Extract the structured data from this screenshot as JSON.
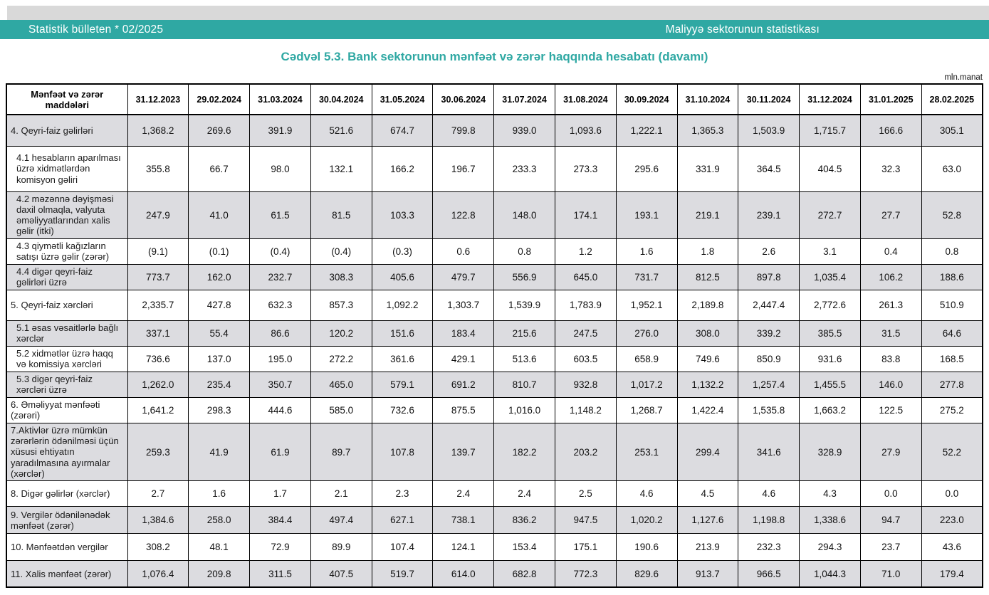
{
  "page": {
    "header_bar": {
      "left_text": "Statistik bülleten * 02/2025",
      "right_text": "Maliyyə sektorunun statistikası"
    },
    "title": "Cədvəl 5.3. Bank sektorunun mənfəət və zərər haqqında hesabatı (davamı)",
    "unit_label": "mln.manat"
  },
  "table": {
    "row_header_label": "Mənfəət və zərər maddələri",
    "date_columns": [
      "31.12.2023",
      "29.02.2024",
      "31.03.2024",
      "30.04.2024",
      "31.05.2024",
      "30.06.2024",
      "31.07.2024",
      "31.08.2024",
      "30.09.2024",
      "31.10.2024",
      "30.11.2024",
      "31.12.2024",
      "31.01.2025",
      "28.02.2025"
    ],
    "rows": [
      {
        "label": "4. Qeyri-faiz gəlirləri",
        "indent": false,
        "values": [
          "1,368.2",
          "269.6",
          "391.9",
          "521.6",
          "674.7",
          "799.8",
          "939.0",
          "1,093.6",
          "1,222.1",
          "1,365.3",
          "1,503.9",
          "1,715.7",
          "166.6",
          "305.1"
        ]
      },
      {
        "label": "4.1 hesabların aparılması üzrə xidmətlərdən komisyon gəliri",
        "indent": true,
        "values": [
          "355.8",
          "66.7",
          "98.0",
          "132.1",
          "166.2",
          "196.7",
          "233.3",
          "273.3",
          "295.6",
          "331.9",
          "364.5",
          "404.5",
          "32.3",
          "63.0"
        ]
      },
      {
        "label": "4.2 məzənnə dəyişməsi daxil olmaqla, valyuta əməliyyatlarından xalis gəlir (itki)",
        "indent": true,
        "values": [
          "247.9",
          "41.0",
          "61.5",
          "81.5",
          "103.3",
          "122.8",
          "148.0",
          "174.1",
          "193.1",
          "219.1",
          "239.1",
          "272.7",
          "27.7",
          "52.8"
        ]
      },
      {
        "label": "4.3 qiymətli kağızların satışı üzrə gəlir (zərər)",
        "indent": true,
        "values": [
          "(9.1)",
          "(0.1)",
          "(0.4)",
          "(0.4)",
          "(0.3)",
          "0.6",
          "0.8",
          "1.2",
          "1.6",
          "1.8",
          "2.6",
          "3.1",
          "0.4",
          "0.8"
        ]
      },
      {
        "label": "4.4 digər qeyri-faiz gəlirləri üzrə",
        "indent": true,
        "values": [
          "773.7",
          "162.0",
          "232.7",
          "308.3",
          "405.6",
          "479.7",
          "556.9",
          "645.0",
          "731.7",
          "812.5",
          "897.8",
          "1,035.4",
          "106.2",
          "188.6"
        ]
      },
      {
        "label": "5. Qeyri-faiz xərcləri",
        "indent": false,
        "values": [
          "2,335.7",
          "427.8",
          "632.3",
          "857.3",
          "1,092.2",
          "1,303.7",
          "1,539.9",
          "1,783.9",
          "1,952.1",
          "2,189.8",
          "2,447.4",
          "2,772.6",
          "261.3",
          "510.9"
        ]
      },
      {
        "label": "5.1 əsas vəsaitlərlə bağlı xərclər",
        "indent": true,
        "values": [
          "337.1",
          "55.4",
          "86.6",
          "120.2",
          "151.6",
          "183.4",
          "215.6",
          "247.5",
          "276.0",
          "308.0",
          "339.2",
          "385.5",
          "31.5",
          "64.6"
        ]
      },
      {
        "label": "5.2 xidmətlər üzrə haqq və komissiya xərcləri",
        "indent": true,
        "values": [
          "736.6",
          "137.0",
          "195.0",
          "272.2",
          "361.6",
          "429.1",
          "513.6",
          "603.5",
          "658.9",
          "749.6",
          "850.9",
          "931.6",
          "83.8",
          "168.5"
        ]
      },
      {
        "label": "5.3 digər qeyri-faiz xərcləri üzrə",
        "indent": true,
        "values": [
          "1,262.0",
          "235.4",
          "350.7",
          "465.0",
          "579.1",
          "691.2",
          "810.7",
          "932.8",
          "1,017.2",
          "1,132.2",
          "1,257.4",
          "1,455.5",
          "146.0",
          "277.8"
        ]
      },
      {
        "label": "6. Əməliyyat mənfəəti (zərəri)",
        "indent": false,
        "values": [
          "1,641.2",
          "298.3",
          "444.6",
          "585.0",
          "732.6",
          "875.5",
          "1,016.0",
          "1,148.2",
          "1,268.7",
          "1,422.4",
          "1,535.8",
          "1,663.2",
          "122.5",
          "275.2"
        ]
      },
      {
        "label": "7.Aktivlər üzrə mümkün zərərlərin ödənilməsi üçün xüsusi ehtiyatın yaradılmasına ayırmalar (xərclər)",
        "indent": false,
        "values": [
          "259.3",
          "41.9",
          "61.9",
          "89.7",
          "107.8",
          "139.7",
          "182.2",
          "203.2",
          "253.1",
          "299.4",
          "341.6",
          "328.9",
          "27.9",
          "52.2"
        ]
      },
      {
        "label": "8. Digər gəlirlər (xərclər)",
        "indent": false,
        "values": [
          "2.7",
          "1.6",
          "1.7",
          "2.1",
          "2.3",
          "2.4",
          "2.4",
          "2.5",
          "4.6",
          "4.5",
          "4.6",
          "4.3",
          "0.0",
          "0.0"
        ]
      },
      {
        "label": "9. Vergilər ödənilənədək mənfəət (zərər)",
        "indent": false,
        "values": [
          "1,384.6",
          "258.0",
          "384.4",
          "497.4",
          "627.1",
          "738.1",
          "836.2",
          "947.5",
          "1,020.2",
          "1,127.6",
          "1,198.8",
          "1,338.6",
          "94.7",
          "223.0"
        ]
      },
      {
        "label": "10. Mənfəətdən vergilər",
        "indent": false,
        "values": [
          "308.2",
          "48.1",
          "72.9",
          "89.9",
          "107.4",
          "124.1",
          "153.4",
          "175.1",
          "190.6",
          "213.9",
          "232.3",
          "294.3",
          "23.7",
          "43.6"
        ]
      },
      {
        "label": "11. Xalis mənfəət (zərər)",
        "indent": false,
        "values": [
          "1,076.4",
          "209.8",
          "311.5",
          "407.5",
          "519.7",
          "614.0",
          "682.8",
          "772.3",
          "829.6",
          "913.7",
          "966.5",
          "1,044.3",
          "71.0",
          "179.4"
        ]
      }
    ]
  },
  "colors": {
    "accent_teal": "#2fa8a3",
    "shaded_row": "#dcdce0",
    "top_strip_gray": "#d9d9d9",
    "border_black": "#000000"
  }
}
